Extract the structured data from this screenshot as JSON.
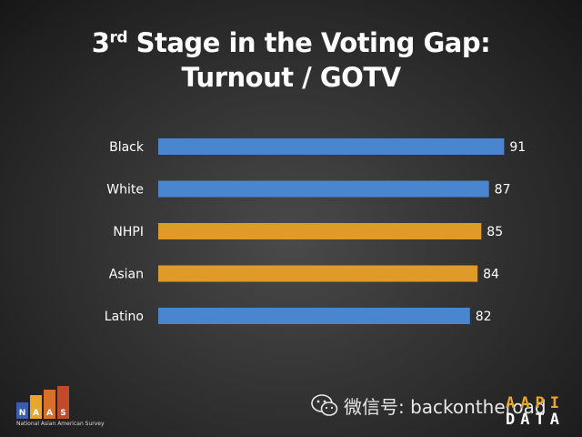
{
  "title": {
    "line1_pre": "3",
    "line1_sup": "rd",
    "line1_post": " Stage in the Voting Gap:",
    "line2": "Turnout / GOTV"
  },
  "chart_data": {
    "type": "bar",
    "orientation": "horizontal",
    "categories": [
      "Black",
      "White",
      "NHPI",
      "Asian",
      "Latino"
    ],
    "values": [
      91,
      87,
      85,
      84,
      82
    ],
    "colors": [
      "#4a86cf",
      "#4a86cf",
      "#e09a2a",
      "#e09a2a",
      "#4a86cf"
    ],
    "xlim": [
      0,
      100
    ],
    "grid": false,
    "legend": "none",
    "data_labels": true
  },
  "footer": {
    "logo_letters": [
      "N",
      "A",
      "A",
      "S"
    ],
    "logo_colors": [
      "#3a5fa8",
      "#e8a62a",
      "#d9702a",
      "#c04a2a"
    ],
    "logo_caption": "National Asian American Survey",
    "watermark_text": "微信号: backontheroad",
    "watermark_icon": "wechat-icon",
    "aapi_row1": "AAPI",
    "aapi_row2": "DATA"
  }
}
